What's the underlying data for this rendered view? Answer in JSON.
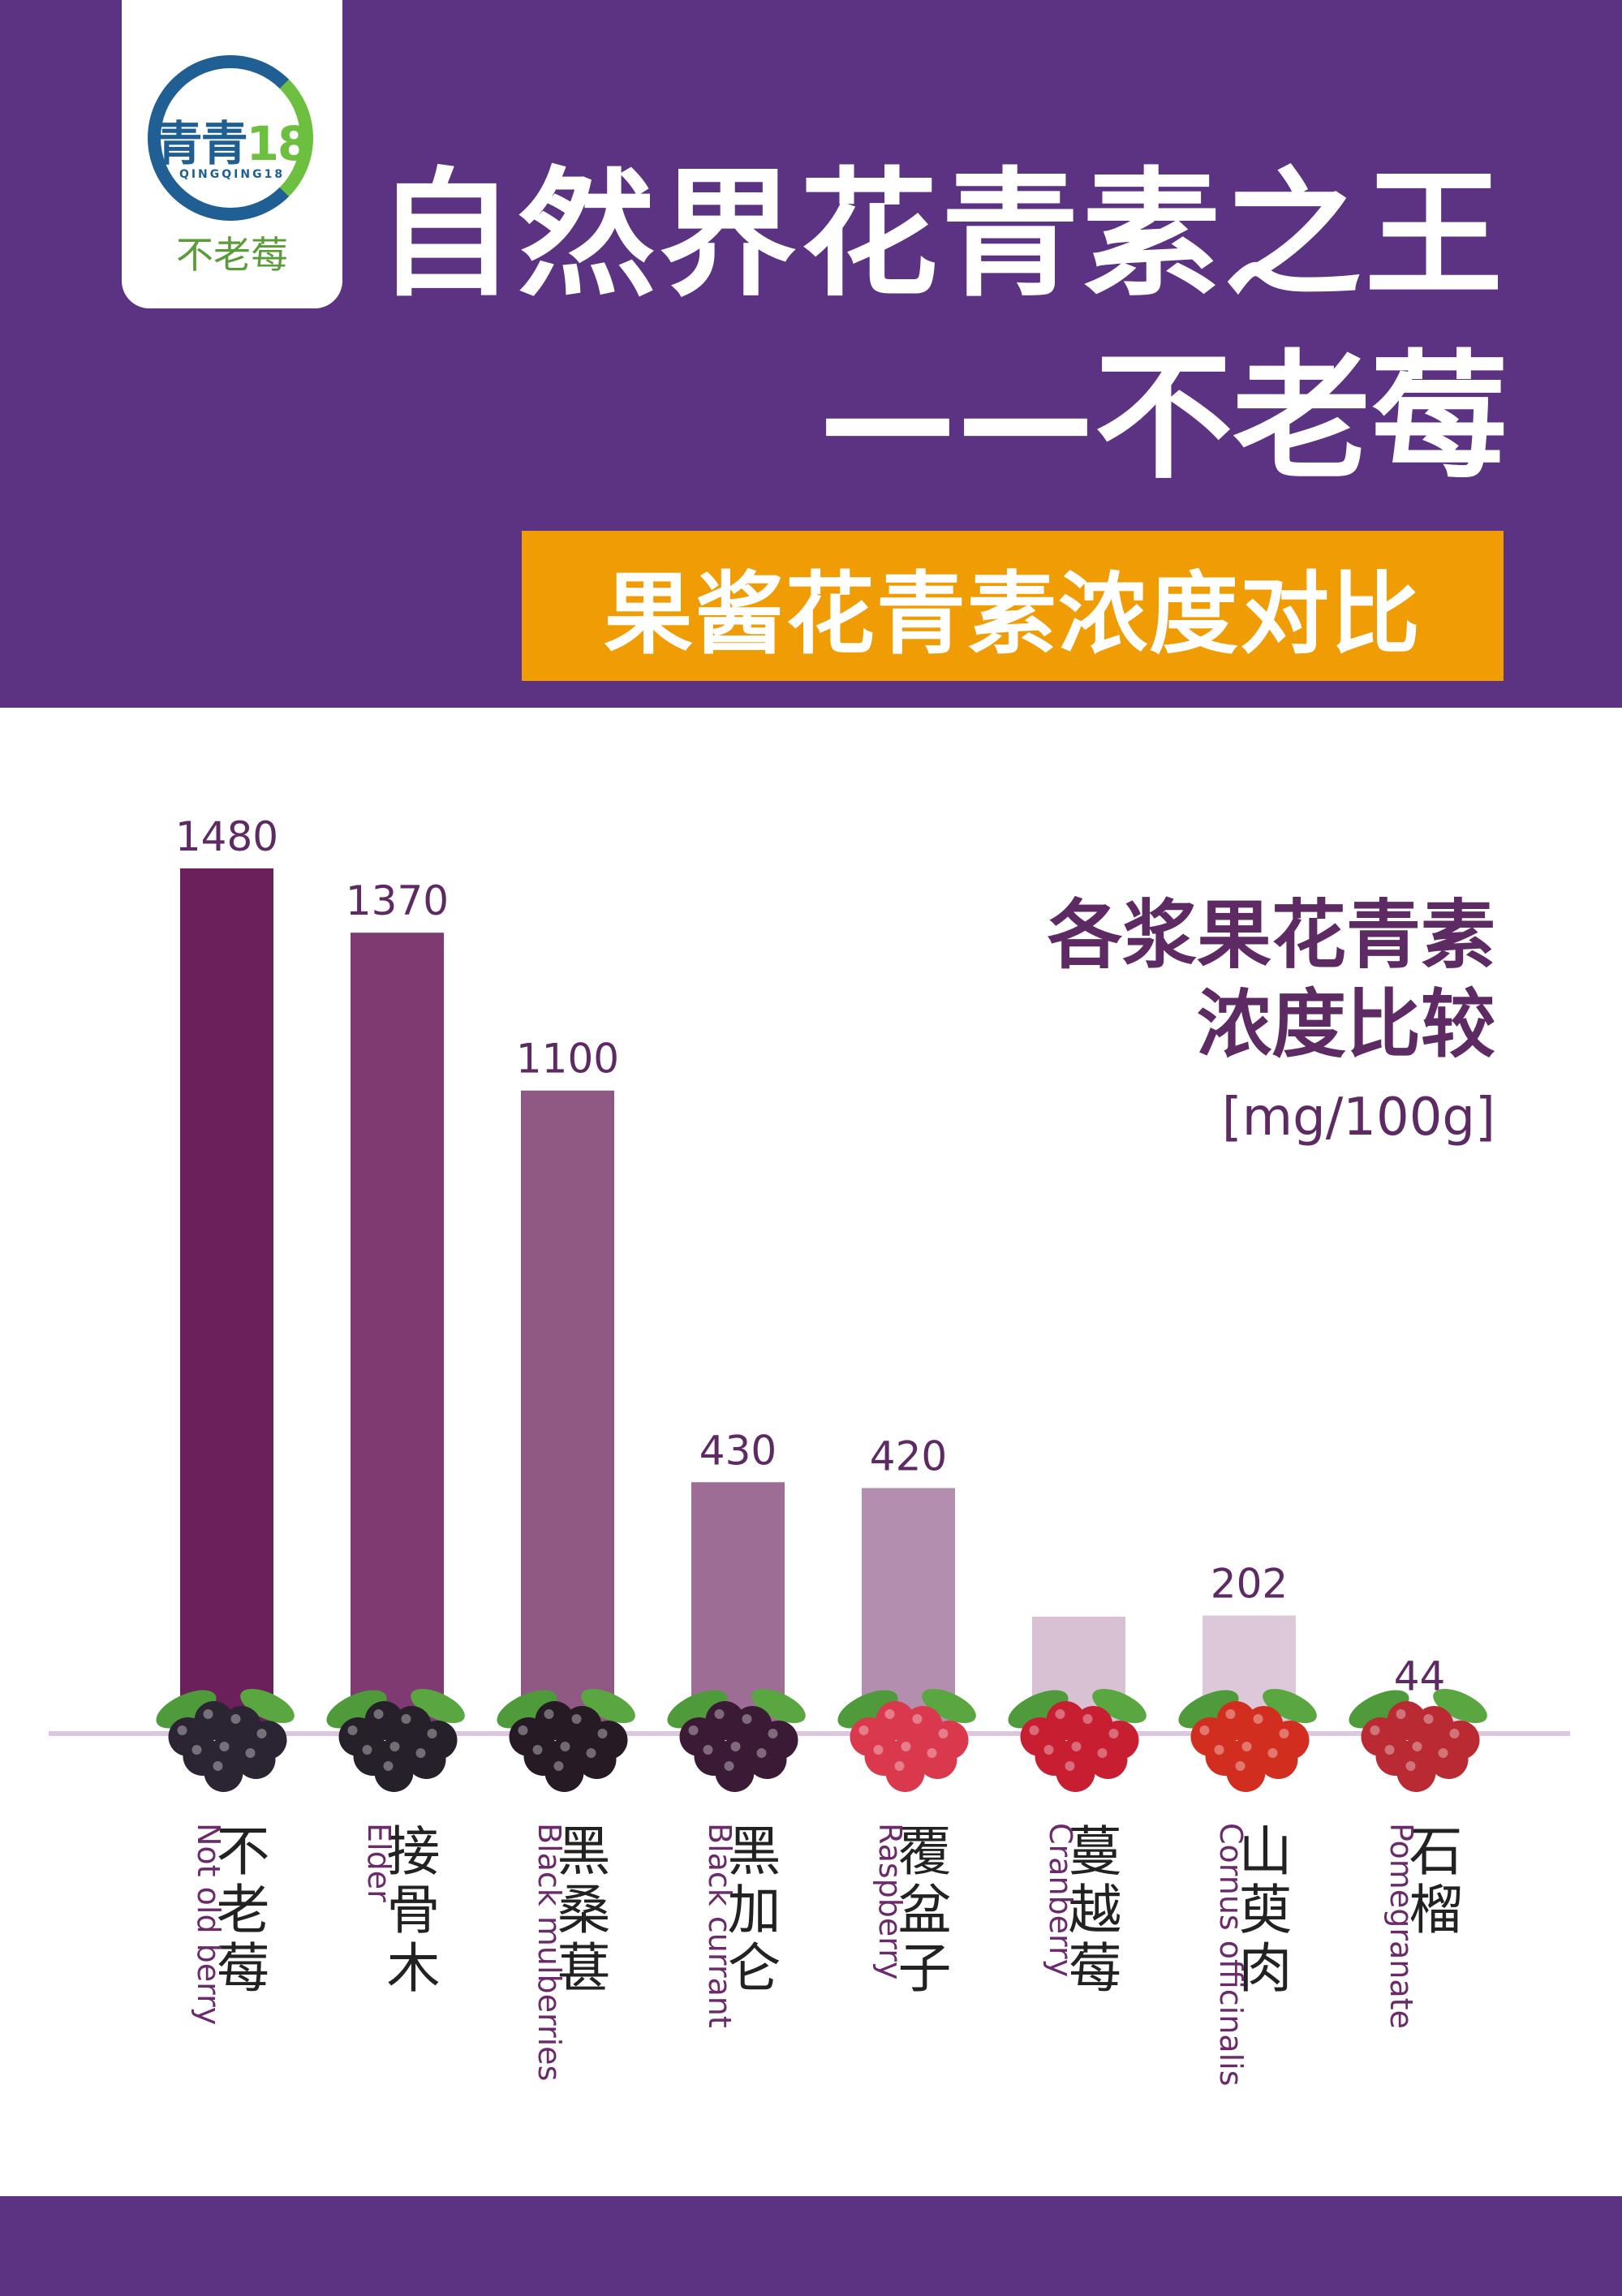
{
  "logo": {
    "brand": "青青",
    "brand_num": "18",
    "sub": "QINGQING18",
    "product": "不老莓"
  },
  "header": {
    "title": "自然界花青素之王",
    "title2": "——不老莓",
    "subtitle": "果酱花青素浓度对比"
  },
  "chart_title": {
    "line1": "各浆果花青素",
    "line2": "浓度比较",
    "unit": "[mg/100g]"
  },
  "colors": {
    "header_bg": "#5c3382",
    "subtitle_bg": "#f09c05",
    "text_accent": "#5e2a63"
  },
  "chart_data": {
    "type": "bar",
    "ylim": [
      0,
      1480
    ],
    "grid": false,
    "categories": [
      "不老莓",
      "接骨木",
      "黑桑葚",
      "黑加仑",
      "覆盆子",
      "蔓越莓",
      "山萸肉",
      "石榴"
    ],
    "english_labels": [
      "Not old berry",
      "Elder",
      "Black mulberries",
      "Black currant",
      "Raspberry",
      "Cranberry",
      "Cornus officinalis",
      "Pomegranate"
    ],
    "values": [
      1480,
      1370,
      1100,
      430,
      420,
      200,
      202,
      44
    ],
    "value_labels": [
      "1480",
      "1370",
      "1100",
      "430",
      "420",
      "",
      "202",
      "44"
    ],
    "bar_colors": [
      "#6b1f5b",
      "#7f3a72",
      "#8f5983",
      "#9e6d95",
      "#b48eae",
      "#d7c1d3",
      "#ddc8da",
      "#e4d3e1"
    ],
    "fruit_icons": [
      "aronia-berries-icon",
      "elderberry-icon",
      "mulberry-icon",
      "blackcurrant-icon",
      "raspberry-icon",
      "cranberry-icon",
      "cornus-berries-icon",
      "pomegranate-icon"
    ],
    "fruit_colors": [
      "#2b2433",
      "#252029",
      "#261b25",
      "#3b1a35",
      "#d9384d",
      "#c71e32",
      "#d22e20",
      "#b92a33"
    ]
  }
}
